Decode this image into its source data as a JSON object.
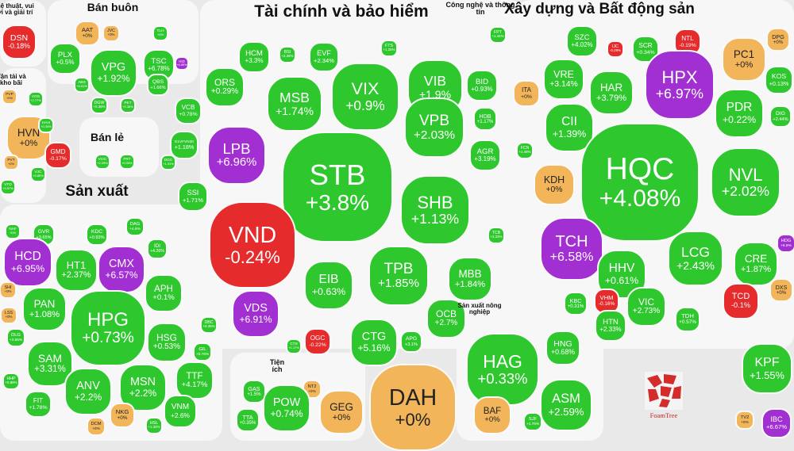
{
  "groups": [
    {
      "key": "ent",
      "label": "Nghệ thuật, vui chơi và giải trí"
    },
    {
      "key": "wholesale",
      "label": "Bán buôn"
    },
    {
      "key": "finance",
      "label": "Tài chính và bảo hiểm"
    },
    {
      "key": "tech",
      "label": "Công nghệ và thông tin"
    },
    {
      "key": "construction",
      "label": "Xây dựng và Bất động sản"
    },
    {
      "key": "transport",
      "label": "Vận tải và kho bãi"
    },
    {
      "key": "retail",
      "label": "Bán lẻ"
    },
    {
      "key": "manufacturing",
      "label": "Sản xuất"
    },
    {
      "key": "utilities",
      "label": "Tiện ích"
    },
    {
      "key": "agri",
      "label": "Sản xuất nông nghiệp"
    }
  ],
  "stocks": [
    {
      "t": "DSN",
      "v": "-0.18%",
      "c": "r"
    },
    {
      "t": "PVP",
      "v": "+0%",
      "c": "y"
    },
    {
      "t": "VOS",
      "v": "+2.77%",
      "c": "g"
    },
    {
      "t": "HVN",
      "v": "+0%",
      "c": "y"
    },
    {
      "t": "HAH",
      "v": "+0.34%",
      "c": "g"
    },
    {
      "t": "GMD",
      "v": "-0.17%",
      "c": "r"
    },
    {
      "t": "PVT",
      "v": "+0%",
      "c": "y"
    },
    {
      "t": "VJC",
      "v": "+0.89%",
      "c": "g"
    },
    {
      "t": "VTO",
      "v": "+0.57%",
      "c": "g"
    },
    {
      "t": "AAT",
      "v": "+0%",
      "c": "y"
    },
    {
      "t": "JVC",
      "v": "+0%",
      "c": "y"
    },
    {
      "t": "TLH",
      "v": "+0%",
      "c": "g"
    },
    {
      "t": "PLX",
      "v": "+0.5%",
      "c": "g"
    },
    {
      "t": "VPG",
      "v": "+1.92%",
      "c": "g"
    },
    {
      "t": "TSC",
      "v": "+6.78%",
      "c": "g"
    },
    {
      "t": "HID",
      "v": "+6.89%",
      "c": "p"
    },
    {
      "t": "ABS",
      "v": "+6.91%",
      "c": "g"
    },
    {
      "t": "QBS",
      "v": "+1.66%",
      "c": "g"
    },
    {
      "t": "DGW",
      "v": "+0.36%",
      "c": "g"
    },
    {
      "t": "PET",
      "v": "+0.38%",
      "c": "g"
    },
    {
      "t": "VOC",
      "v": "+2.25%",
      "c": "g"
    },
    {
      "t": "FRT",
      "v": "+0.93%",
      "c": "g"
    },
    {
      "t": "DGC",
      "v": "+1.31%",
      "c": "g"
    },
    {
      "t": "HCM",
      "v": "+3.3%",
      "c": "g"
    },
    {
      "t": "BSI",
      "v": "+2.26%",
      "c": "g"
    },
    {
      "t": "EVF",
      "v": "+2.34%",
      "c": "g"
    },
    {
      "t": "FTS",
      "v": "+1.25%",
      "c": "g"
    },
    {
      "t": "ORS",
      "v": "+0.29%",
      "c": "g"
    },
    {
      "t": "MSB",
      "v": "+1.74%",
      "c": "g"
    },
    {
      "t": "VIX",
      "v": "+0.9%",
      "c": "g"
    },
    {
      "t": "VIB",
      "v": "+1.9%",
      "c": "g"
    },
    {
      "t": "BID",
      "v": "+0.93%",
      "c": "g"
    },
    {
      "t": "VCB",
      "v": "+0.78%",
      "c": "g"
    },
    {
      "t": "HDB",
      "v": "+1.17%",
      "c": "g"
    },
    {
      "t": "E1VFVN30",
      "v": "+1.18%",
      "c": "g"
    },
    {
      "t": "LPB",
      "v": "+6.96%",
      "c": "p"
    },
    {
      "t": "STB",
      "v": "+3.8%",
      "c": "g"
    },
    {
      "t": "VPB",
      "v": "+2.03%",
      "c": "g"
    },
    {
      "t": "AGR",
      "v": "+3.19%",
      "c": "g"
    },
    {
      "t": "SSI",
      "v": "+1.71%",
      "c": "g"
    },
    {
      "t": "SHB",
      "v": "+1.13%",
      "c": "g"
    },
    {
      "t": "VND",
      "v": "-0.24%",
      "c": "r"
    },
    {
      "t": "TCB",
      "v": "+2.23%",
      "c": "g"
    },
    {
      "t": "TPB",
      "v": "+1.85%",
      "c": "g"
    },
    {
      "t": "MBB",
      "v": "+1.84%",
      "c": "g"
    },
    {
      "t": "EIB",
      "v": "+0.63%",
      "c": "g"
    },
    {
      "t": "VDS",
      "v": "+6.91%",
      "c": "p"
    },
    {
      "t": "OCB",
      "v": "+2.7%",
      "c": "g"
    },
    {
      "t": "OGC",
      "v": "-0.22%",
      "c": "r"
    },
    {
      "t": "CTG",
      "v": "+5.16%",
      "c": "g"
    },
    {
      "t": "APG",
      "v": "+3.1%",
      "c": "g"
    },
    {
      "t": "CTS",
      "v": "+1.17%",
      "c": "g"
    },
    {
      "t": "FPT",
      "v": "+1.44%",
      "c": "g"
    },
    {
      "t": "SZC",
      "v": "+4.02%",
      "c": "g"
    },
    {
      "t": "IJC",
      "v": "-0.29%",
      "c": "r"
    },
    {
      "t": "SCR",
      "v": "+0.34%",
      "c": "g"
    },
    {
      "t": "NTL",
      "v": "-0.19%",
      "c": "r"
    },
    {
      "t": "DPG",
      "v": "+0%",
      "c": "y"
    },
    {
      "t": "PC1",
      "v": "+0%",
      "c": "y"
    },
    {
      "t": "VRE",
      "v": "+3.14%",
      "c": "g"
    },
    {
      "t": "HPX",
      "v": "+6.97%",
      "c": "p"
    },
    {
      "t": "KOS",
      "v": "+0.13%",
      "c": "g"
    },
    {
      "t": "ITA",
      "v": "+0%",
      "c": "y"
    },
    {
      "t": "HAR",
      "v": "+3.79%",
      "c": "g"
    },
    {
      "t": "PDR",
      "v": "+0.22%",
      "c": "g"
    },
    {
      "t": "DIG",
      "v": "+2.44%",
      "c": "g"
    },
    {
      "t": "CII",
      "v": "+1.39%",
      "c": "g"
    },
    {
      "t": "FCN",
      "v": "+1.48%",
      "c": "g"
    },
    {
      "t": "HQC",
      "v": "+4.08%",
      "c": "g"
    },
    {
      "t": "NVL",
      "v": "+2.02%",
      "c": "g"
    },
    {
      "t": "KDH",
      "v": "+0%",
      "c": "y"
    },
    {
      "t": "TCH",
      "v": "+6.58%",
      "c": "p"
    },
    {
      "t": "LCG",
      "v": "+2.43%",
      "c": "g"
    },
    {
      "t": "HDG",
      "v": "+6.9%",
      "c": "p"
    },
    {
      "t": "HHV",
      "v": "+0.61%",
      "c": "g"
    },
    {
      "t": "CRE",
      "v": "+1.87%",
      "c": "g"
    },
    {
      "t": "KBC",
      "v": "+0.31%",
      "c": "g"
    },
    {
      "t": "VHM",
      "v": "-0.16%",
      "c": "r"
    },
    {
      "t": "TCD",
      "v": "-0.1%",
      "c": "r"
    },
    {
      "t": "DXS",
      "v": "+0%",
      "c": "y"
    },
    {
      "t": "VIC",
      "v": "+2.73%",
      "c": "g"
    },
    {
      "t": "HTN",
      "v": "+2.33%",
      "c": "g"
    },
    {
      "t": "TDH",
      "v": "+0.57%",
      "c": "g"
    },
    {
      "t": "NAF",
      "v": "+0%",
      "c": "g"
    },
    {
      "t": "GVR",
      "v": "+3.65%",
      "c": "g"
    },
    {
      "t": "KDC",
      "v": "+0.93%",
      "c": "g"
    },
    {
      "t": "DAG",
      "v": "+4.6%",
      "c": "g"
    },
    {
      "t": "IDI",
      "v": "+4.26%",
      "c": "g"
    },
    {
      "t": "HCD",
      "v": "+6.95%",
      "c": "p"
    },
    {
      "t": "HT1",
      "v": "+2.37%",
      "c": "g"
    },
    {
      "t": "CMX",
      "v": "+6.57%",
      "c": "p"
    },
    {
      "t": "SHI",
      "v": "+0%",
      "c": "y"
    },
    {
      "t": "APH",
      "v": "+0.1%",
      "c": "g"
    },
    {
      "t": "PAN",
      "v": "+1.08%",
      "c": "g"
    },
    {
      "t": "LSS",
      "v": "+0%",
      "c": "y"
    },
    {
      "t": "HPG",
      "v": "+0.73%",
      "c": "g"
    },
    {
      "t": "HSG",
      "v": "+0.53%",
      "c": "g"
    },
    {
      "t": "DBC",
      "v": "+0.36%",
      "c": "g"
    },
    {
      "t": "DLG",
      "v": "+3.55%",
      "c": "g"
    },
    {
      "t": "SAM",
      "v": "+3.31%",
      "c": "g"
    },
    {
      "t": "GIL",
      "v": "+0.76%",
      "c": "g"
    },
    {
      "t": "HHP",
      "v": "+0.88%",
      "c": "g"
    },
    {
      "t": "MSN",
      "v": "+2.2%",
      "c": "g"
    },
    {
      "t": "TTF",
      "v": "+4.17%",
      "c": "g"
    },
    {
      "t": "ANV",
      "v": "+2.2%",
      "c": "g"
    },
    {
      "t": "FIT",
      "v": "+1.78%",
      "c": "g"
    },
    {
      "t": "NKG",
      "v": "+0%",
      "c": "y"
    },
    {
      "t": "VNM",
      "v": "+2.6%",
      "c": "g"
    },
    {
      "t": "DCM",
      "v": "+0%",
      "c": "y"
    },
    {
      "t": "HSL",
      "v": "+1.34%",
      "c": "g"
    },
    {
      "t": "GAS",
      "v": "+1.5%",
      "c": "g"
    },
    {
      "t": "NT2",
      "v": "+0%",
      "c": "y"
    },
    {
      "t": "POW",
      "v": "+0.74%",
      "c": "g"
    },
    {
      "t": "GEG",
      "v": "+0%",
      "c": "y"
    },
    {
      "t": "TTA",
      "v": "+0.35%",
      "c": "g"
    },
    {
      "t": "DAH",
      "v": "+0%",
      "c": "y"
    },
    {
      "t": "HAG",
      "v": "+0.33%",
      "c": "g"
    },
    {
      "t": "HNG",
      "v": "+0.68%",
      "c": "g"
    },
    {
      "t": "BAF",
      "v": "+0%",
      "c": "y"
    },
    {
      "t": "ASM",
      "v": "+2.59%",
      "c": "g"
    },
    {
      "t": "SJF",
      "v": "+1.76%",
      "c": "g"
    },
    {
      "t": "KPF",
      "v": "+1.55%",
      "c": "g"
    },
    {
      "t": "TV2",
      "v": "+0%",
      "c": "y"
    },
    {
      "t": "IBC",
      "v": "+6.67%",
      "c": "p"
    }
  ],
  "logo_text": "FoamTree"
}
